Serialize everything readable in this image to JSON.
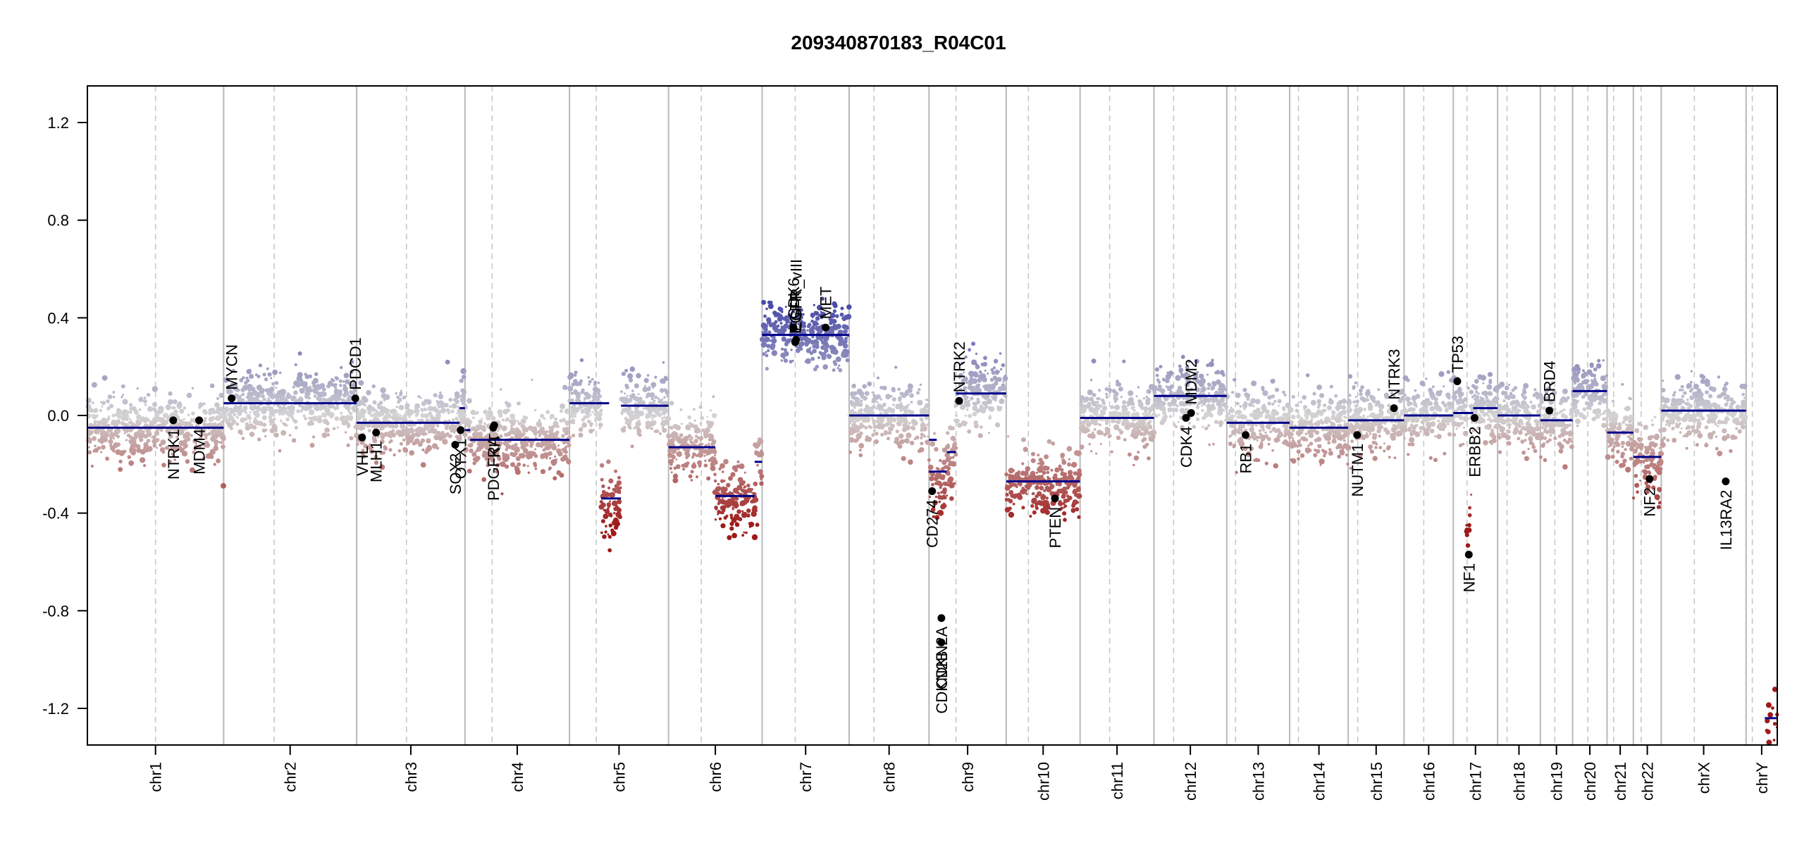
{
  "chart_data": {
    "type": "scatter",
    "title": "209340870183_R04C01",
    "xlabel": "",
    "ylabel": "",
    "ylim": [
      -1.35,
      1.35
    ],
    "yticks": [
      -1.2,
      -0.8,
      -0.4,
      0.0,
      0.4,
      0.8,
      1.2
    ],
    "ytick_labels": [
      "-1.2",
      "-0.8",
      "-0.4",
      "0.0",
      "0.4",
      "0.8",
      "1.2"
    ],
    "colors": {
      "gain": "#4a4aa8",
      "neutral": "#d3d3d3",
      "loss": "#9e1a1a",
      "segment": "#00008b",
      "gene_point": "#000000"
    },
    "chromosomes": [
      {
        "name": "chr1",
        "size": 249,
        "centromere": 0.5,
        "segments": [
          {
            "from": 0,
            "to": 1,
            "value": -0.05
          }
        ]
      },
      {
        "name": "chr2",
        "size": 243,
        "centromere": 0.38,
        "segments": [
          {
            "from": 0,
            "to": 1,
            "value": 0.05
          }
        ]
      },
      {
        "name": "chr3",
        "size": 198,
        "centromere": 0.46,
        "segments": [
          {
            "from": 0,
            "to": 0.95,
            "value": -0.03
          },
          {
            "from": 0.95,
            "to": 1,
            "value": 0.03
          }
        ]
      },
      {
        "name": "chr4",
        "size": 191,
        "centromere": 0.26,
        "segments": [
          {
            "from": 0,
            "to": 0.05,
            "value": -0.06
          },
          {
            "from": 0.05,
            "to": 1,
            "value": -0.1
          }
        ]
      },
      {
        "name": "chr5",
        "size": 181,
        "centromere": 0.27,
        "segments": [
          {
            "from": 0,
            "to": 0.4,
            "value": 0.05
          },
          {
            "from": 0.32,
            "to": 0.52,
            "value": -0.34
          },
          {
            "from": 0.52,
            "to": 1,
            "value": 0.04
          }
        ]
      },
      {
        "name": "chr6",
        "size": 171,
        "centromere": 0.35,
        "segments": [
          {
            "from": 0,
            "to": 0.5,
            "value": -0.13
          },
          {
            "from": 0.5,
            "to": 0.92,
            "value": -0.33
          },
          {
            "from": 0.92,
            "to": 1,
            "value": -0.19
          }
        ]
      },
      {
        "name": "chr7",
        "size": 159,
        "centromere": 0.38,
        "segments": [
          {
            "from": 0,
            "to": 1,
            "value": 0.33
          }
        ]
      },
      {
        "name": "chr8",
        "size": 146,
        "centromere": 0.31,
        "segments": [
          {
            "from": 0,
            "to": 1,
            "value": 0.0
          }
        ]
      },
      {
        "name": "chr9",
        "size": 141,
        "centromere": 0.35,
        "segments": [
          {
            "from": 0,
            "to": 0.1,
            "value": -0.1
          },
          {
            "from": 0.0,
            "to": 0.23,
            "value": -0.23
          },
          {
            "from": 0.23,
            "to": 0.35,
            "value": -0.15
          },
          {
            "from": 0.35,
            "to": 1,
            "value": 0.09
          }
        ]
      },
      {
        "name": "chr10",
        "size": 135,
        "centromere": 0.3,
        "segments": [
          {
            "from": 0,
            "to": 1,
            "value": -0.27
          }
        ]
      },
      {
        "name": "chr11",
        "size": 135,
        "centromere": 0.4,
        "segments": [
          {
            "from": 0,
            "to": 1,
            "value": -0.01
          }
        ]
      },
      {
        "name": "chr12",
        "size": 133,
        "centromere": 0.27,
        "segments": [
          {
            "from": 0,
            "to": 1,
            "value": 0.08
          }
        ]
      },
      {
        "name": "chr13",
        "size": 115,
        "centromere": 0.14,
        "segments": [
          {
            "from": 0,
            "to": 1,
            "value": -0.03
          }
        ]
      },
      {
        "name": "chr14",
        "size": 107,
        "centromere": 0.15,
        "segments": [
          {
            "from": 0,
            "to": 1,
            "value": -0.05
          }
        ]
      },
      {
        "name": "chr15",
        "size": 102,
        "centromere": 0.17,
        "segments": [
          {
            "from": 0,
            "to": 1,
            "value": -0.02
          }
        ]
      },
      {
        "name": "chr16",
        "size": 90,
        "centromere": 0.4,
        "segments": [
          {
            "from": 0,
            "to": 1,
            "value": 0.0
          }
        ]
      },
      {
        "name": "chr17",
        "size": 81,
        "centromere": 0.31,
        "segments": [
          {
            "from": 0,
            "to": 0.45,
            "value": 0.01
          },
          {
            "from": 0.45,
            "to": 1,
            "value": 0.03
          }
        ]
      },
      {
        "name": "chr18",
        "size": 78,
        "centromere": 0.22,
        "segments": [
          {
            "from": 0,
            "to": 1,
            "value": 0.0
          }
        ]
      },
      {
        "name": "chr19",
        "size": 59,
        "centromere": 0.45,
        "segments": [
          {
            "from": 0,
            "to": 1,
            "value": -0.02
          }
        ]
      },
      {
        "name": "chr20",
        "size": 63,
        "centromere": 0.44,
        "segments": [
          {
            "from": 0,
            "to": 1,
            "value": 0.1
          }
        ]
      },
      {
        "name": "chr21",
        "size": 48,
        "centromere": 0.25,
        "segments": [
          {
            "from": 0,
            "to": 1,
            "value": -0.07
          }
        ]
      },
      {
        "name": "chr22",
        "size": 51,
        "centromere": 0.28,
        "segments": [
          {
            "from": 0,
            "to": 1,
            "value": -0.17
          }
        ]
      },
      {
        "name": "chrX",
        "size": 155,
        "centromere": 0.39,
        "segments": [
          {
            "from": 0,
            "to": 1,
            "value": 0.02
          }
        ]
      },
      {
        "name": "chrY",
        "size": 57,
        "centromere": 0.2,
        "segments": [
          {
            "from": 0.6,
            "to": 1,
            "value": -1.24
          }
        ]
      }
    ],
    "genes": [
      {
        "label": "NTRK1",
        "chrom": "chr1",
        "pos": 0.63,
        "value": -0.02,
        "side": "below"
      },
      {
        "label": "MDM4",
        "chrom": "chr1",
        "pos": 0.82,
        "value": -0.02,
        "side": "below"
      },
      {
        "label": "MYCN",
        "chrom": "chr2",
        "pos": 0.06,
        "value": 0.07,
        "side": "above"
      },
      {
        "label": "PDCD1",
        "chrom": "chr2",
        "pos": 0.99,
        "value": 0.07,
        "side": "above"
      },
      {
        "label": "VHL",
        "chrom": "chr3",
        "pos": 0.05,
        "value": -0.09,
        "side": "below"
      },
      {
        "label": "MLH1",
        "chrom": "chr3",
        "pos": 0.18,
        "value": -0.07,
        "side": "below"
      },
      {
        "label": "SOX2",
        "chrom": "chr3",
        "pos": 0.91,
        "value": -0.12,
        "side": "below"
      },
      {
        "label": "OTX1",
        "chrom": "chr3",
        "pos": 0.96,
        "value": -0.06,
        "side": "below"
      },
      {
        "label": "PDGFRA",
        "chrom": "chr4",
        "pos": 0.27,
        "value": -0.05,
        "side": "below"
      },
      {
        "label": "KIT",
        "chrom": "chr4",
        "pos": 0.28,
        "value": -0.04,
        "side": "below"
      },
      {
        "label": "CDK6",
        "chrom": "chr7",
        "pos": 0.36,
        "value": 0.36,
        "side": "above"
      },
      {
        "label": "EGFR",
        "chrom": "chr7",
        "pos": 0.38,
        "value": 0.3,
        "side": "above"
      },
      {
        "label": "EGFR_vIII",
        "chrom": "chr7",
        "pos": 0.39,
        "value": 0.31,
        "side": "above"
      },
      {
        "label": "MET",
        "chrom": "chr7",
        "pos": 0.73,
        "value": 0.36,
        "side": "above"
      },
      {
        "label": "CD274",
        "chrom": "chr9",
        "pos": 0.04,
        "value": -0.31,
        "side": "below"
      },
      {
        "label": "CDKN2A",
        "chrom": "chr9",
        "pos": 0.16,
        "value": -0.83,
        "side": "below"
      },
      {
        "label": "CDKN2B",
        "chrom": "chr9",
        "pos": 0.16,
        "value": -0.93,
        "side": "below"
      },
      {
        "label": "NTRK2",
        "chrom": "chr9",
        "pos": 0.39,
        "value": 0.06,
        "side": "above"
      },
      {
        "label": "PTEN",
        "chrom": "chr10",
        "pos": 0.66,
        "value": -0.34,
        "side": "below"
      },
      {
        "label": "CDK4",
        "chrom": "chr12",
        "pos": 0.44,
        "value": -0.01,
        "side": "below"
      },
      {
        "label": "MDM2",
        "chrom": "chr12",
        "pos": 0.51,
        "value": 0.01,
        "side": "above"
      },
      {
        "label": "RB1",
        "chrom": "chr13",
        "pos": 0.3,
        "value": -0.08,
        "side": "below"
      },
      {
        "label": "NUTM1",
        "chrom": "chr15",
        "pos": 0.16,
        "value": -0.08,
        "side": "below"
      },
      {
        "label": "NTRK3",
        "chrom": "chr15",
        "pos": 0.82,
        "value": 0.03,
        "side": "above"
      },
      {
        "label": "TP53",
        "chrom": "chr17",
        "pos": 0.09,
        "value": 0.14,
        "side": "above"
      },
      {
        "label": "NF1",
        "chrom": "chr17",
        "pos": 0.35,
        "value": -0.57,
        "side": "below"
      },
      {
        "label": "ERBB2",
        "chrom": "chr17",
        "pos": 0.48,
        "value": -0.01,
        "side": "below"
      },
      {
        "label": "BRD4",
        "chrom": "chr19",
        "pos": 0.28,
        "value": 0.02,
        "side": "above"
      },
      {
        "label": "NF2",
        "chrom": "chr22",
        "pos": 0.58,
        "value": -0.26,
        "side": "below"
      },
      {
        "label": "IL13RA2",
        "chrom": "chrX",
        "pos": 0.76,
        "value": -0.27,
        "side": "below"
      }
    ],
    "focal_losses": [
      {
        "chrom": "chr5",
        "from": 0.34,
        "to": 0.5,
        "value": -0.4
      },
      {
        "chrom": "chr6",
        "from": 0.52,
        "to": 0.95,
        "value": -0.36
      },
      {
        "chrom": "chr9",
        "from": 0.02,
        "to": 0.3,
        "value": -0.3
      },
      {
        "chrom": "chr10",
        "from": 0.0,
        "to": 1.0,
        "value": -0.3
      },
      {
        "chrom": "chr17",
        "from": 0.3,
        "to": 0.42,
        "value": -0.45
      },
      {
        "chrom": "chr22",
        "from": 0.35,
        "to": 1.0,
        "value": -0.22
      }
    ]
  }
}
